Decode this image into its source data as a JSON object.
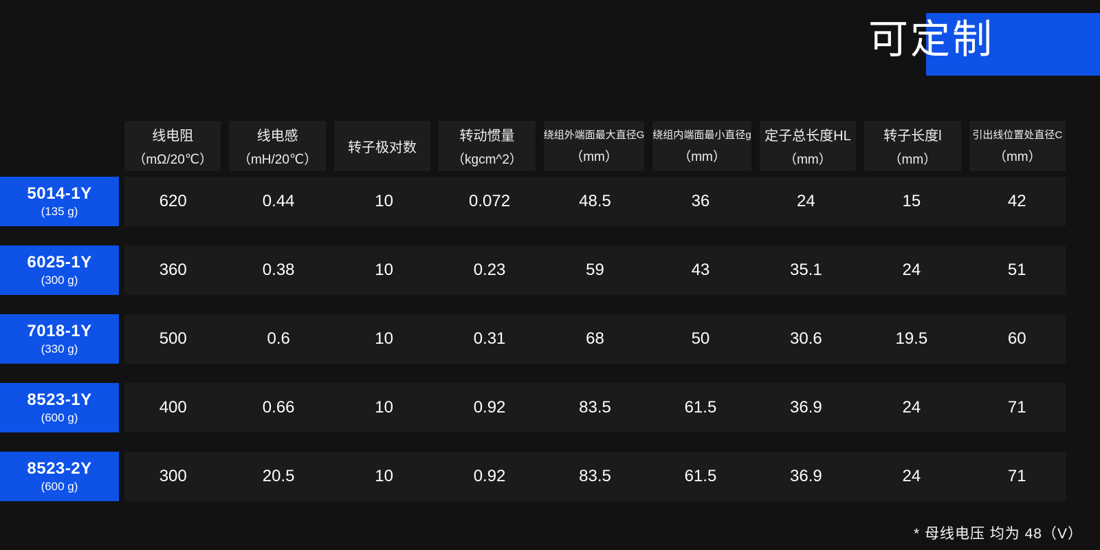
{
  "colors": {
    "accent": "#0e52e8",
    "page_bg": "#121212",
    "band": "#1b1b1b",
    "header_cell": "#1d1d1d"
  },
  "banner": {
    "label": "可定制"
  },
  "table": {
    "columns": [
      {
        "line1": "线电阻",
        "line2": "（mΩ/20℃）",
        "small": false
      },
      {
        "line1": "线电感",
        "line2": "（mH/20℃）",
        "small": false
      },
      {
        "line1": "转子极对数",
        "line2": "",
        "small": false
      },
      {
        "line1": "转动惯量",
        "line2": "（kgcm^2）",
        "small": false
      },
      {
        "line1": "绕组外端面最大直径G",
        "line2": "（mm）",
        "small": true
      },
      {
        "line1": "绕组内端面最小直径g",
        "line2": "（mm）",
        "small": true
      },
      {
        "line1": "定子总长度HL",
        "line2": "（mm）",
        "small": false
      },
      {
        "line1": "转子长度l",
        "line2": "（mm）",
        "small": false
      },
      {
        "line1": "引出线位置处直径C",
        "line2": "（mm）",
        "small": true
      }
    ],
    "rows": [
      {
        "model": "5014-1Y",
        "weight": "(135 g)",
        "values": [
          "620",
          "0.44",
          "10",
          "0.072",
          "48.5",
          "36",
          "24",
          "15",
          "42"
        ]
      },
      {
        "model": "6025-1Y",
        "weight": "(300 g)",
        "values": [
          "360",
          "0.38",
          "10",
          "0.23",
          "59",
          "43",
          "35.1",
          "24",
          "51"
        ]
      },
      {
        "model": "7018-1Y",
        "weight": "(330 g)",
        "values": [
          "500",
          "0.6",
          "10",
          "0.31",
          "68",
          "50",
          "30.6",
          "19.5",
          "60"
        ]
      },
      {
        "model": "8523-1Y",
        "weight": "(600 g)",
        "values": [
          "400",
          "0.66",
          "10",
          "0.92",
          "83.5",
          "61.5",
          "36.9",
          "24",
          "71"
        ]
      },
      {
        "model": "8523-2Y",
        "weight": "(600 g)",
        "values": [
          "300",
          "20.5",
          "10",
          "0.92",
          "83.5",
          "61.5",
          "36.9",
          "24",
          "71"
        ]
      }
    ]
  },
  "footnote": "* 母线电压 均为 48（V）"
}
